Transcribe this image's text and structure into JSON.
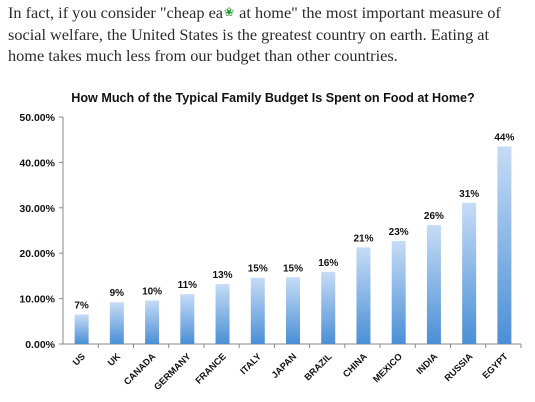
{
  "intro": {
    "before_icon": "In fact, if you consider \"cheap ea",
    "icon": "sprout-icon",
    "after_icon": " at home\" the most important measure of social welfare, the United States is the greatest country on earth. Eating at home takes much less from our budget than other countries."
  },
  "colors": {
    "bar_top": "#c6dcf6",
    "bar_bottom": "#4a8fd6",
    "axis": "#888888"
  },
  "chart_data": {
    "type": "bar",
    "title": "How Much of the Typical Family Budget Is Spent on Food at Home?",
    "xlabel": "",
    "ylabel": "",
    "ylim": [
      0,
      50
    ],
    "yticks": [
      "0.00%",
      "10.00%",
      "20.00%",
      "30.00%",
      "40.00%",
      "50.00%"
    ],
    "categories": [
      "US",
      "UK",
      "CANADA",
      "GERMANY",
      "FRANCE",
      "ITALY",
      "JAPAN",
      "BRAZIL",
      "CHINA",
      "MEXICO",
      "INDIA",
      "RUSSIA",
      "EGYPT"
    ],
    "values": [
      6.5,
      9.2,
      9.6,
      11,
      13.2,
      14.6,
      14.7,
      15.9,
      21.3,
      22.7,
      26.2,
      31.1,
      43.5
    ],
    "data_labels": [
      "7%",
      "9%",
      "10%",
      "11%",
      "13%",
      "15%",
      "15%",
      "16%",
      "21%",
      "23%",
      "26%",
      "31%",
      "44%"
    ],
    "grid": false,
    "legend": "none"
  }
}
